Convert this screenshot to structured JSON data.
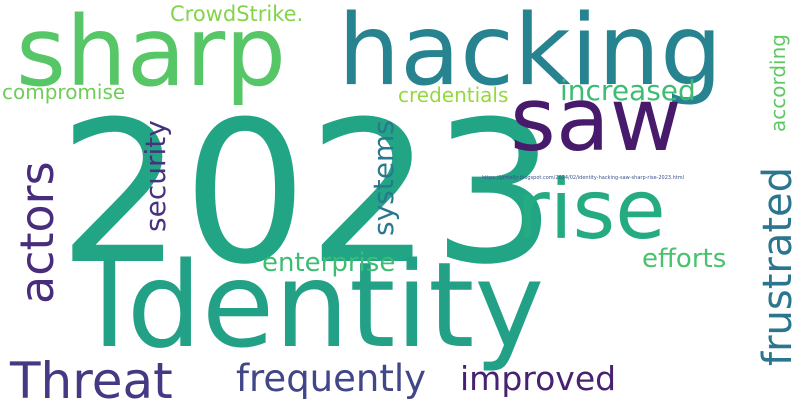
{
  "wordcloud": {
    "words": {
      "w2023": {
        "text": "2023",
        "color": "#21a585"
      },
      "identity": {
        "text": "Identity",
        "color": "#22a187"
      },
      "hacking": {
        "text": "hacking",
        "color": "#26838f"
      },
      "sharp": {
        "text": "sharp",
        "color": "#56c667"
      },
      "saw": {
        "text": "saw",
        "color": "#481a6c"
      },
      "rise": {
        "text": "rise",
        "color": "#25ab82"
      },
      "threat": {
        "text": "Threat",
        "color": "#443a83"
      },
      "actors": {
        "text": "actors",
        "color": "#472d7b"
      },
      "frequently": {
        "text": "frequently",
        "color": "#404688"
      },
      "improved": {
        "text": "improved",
        "color": "#482173"
      },
      "frustrated": {
        "text": "frustrated",
        "color": "#2b758e"
      },
      "enterprise": {
        "text": "enterprise",
        "color": "#3dbc74"
      },
      "efforts": {
        "text": "efforts",
        "color": "#4ac16d"
      },
      "increased": {
        "text": "increased",
        "color": "#3dbc74"
      },
      "credentials": {
        "text": "credentials",
        "color": "#95d840"
      },
      "compromise": {
        "text": "compromise",
        "color": "#6ece58"
      },
      "crowdstrike": {
        "text": "CrowdStrike.",
        "color": "#84d44b"
      },
      "security": {
        "text": "security",
        "color": "#46327e"
      },
      "systems": {
        "text": "systems",
        "color": "#2a788e"
      },
      "according": {
        "text": "according",
        "color": "#5ec962"
      },
      "url": {
        "text": "https://jpmelljr.blogspot.com/2024/02/identity-hacking-saw-sharp-rise-2023.html",
        "color": "#3b528b"
      }
    }
  }
}
